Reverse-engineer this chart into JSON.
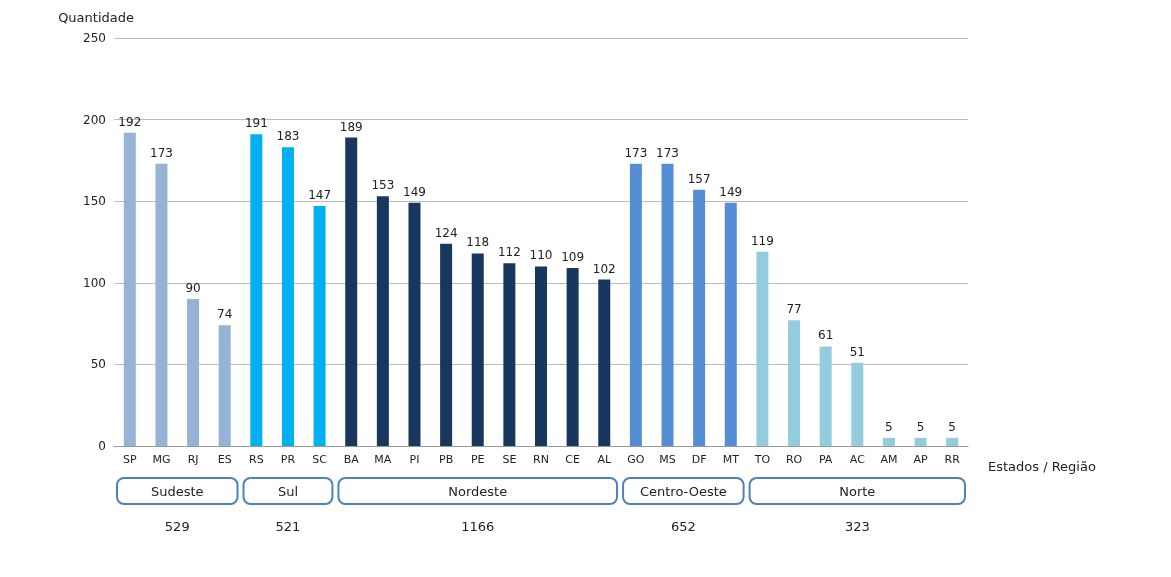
{
  "chart_data": {
    "type": "bar",
    "ylabel": "Quantidade",
    "xlabel": "Estados / Região",
    "categories": [
      "SP",
      "MG",
      "RJ",
      "ES",
      "RS",
      "PR",
      "SC",
      "BA",
      "MA",
      "PI",
      "PB",
      "PE",
      "SE",
      "RN",
      "CE",
      "AL",
      "GO",
      "MS",
      "DF",
      "MT",
      "TO",
      "RO",
      "PA",
      "AC",
      "AM",
      "AP",
      "RR"
    ],
    "values": [
      192,
      173,
      90,
      74,
      191,
      183,
      147,
      189,
      153,
      149,
      124,
      118,
      112,
      110,
      109,
      102,
      173,
      173,
      157,
      149,
      119,
      77,
      61,
      51,
      5,
      5,
      5
    ],
    "colors": [
      "#95b3d7",
      "#95b3d7",
      "#95b3d7",
      "#95b3d7",
      "#00b0f0",
      "#00b0f0",
      "#00b0f0",
      "#17375e",
      "#17375e",
      "#17375e",
      "#17375e",
      "#17375e",
      "#17375e",
      "#17375e",
      "#17375e",
      "#17375e",
      "#558ed5",
      "#558ed5",
      "#558ed5",
      "#558ed5",
      "#93cddd",
      "#93cddd",
      "#93cddd",
      "#93cddd",
      "#93cddd",
      "#93cddd",
      "#93cddd"
    ],
    "ylim": [
      0,
      250
    ],
    "yticks": [
      0,
      50,
      100,
      150,
      200,
      250
    ],
    "grid": "y",
    "data_labels": true,
    "annotations": [
      "Sudeste",
      "529",
      "Sul",
      "521",
      "Nordeste",
      "1166",
      "Centro-Oeste",
      "652",
      "Norte",
      "323"
    ]
  }
}
